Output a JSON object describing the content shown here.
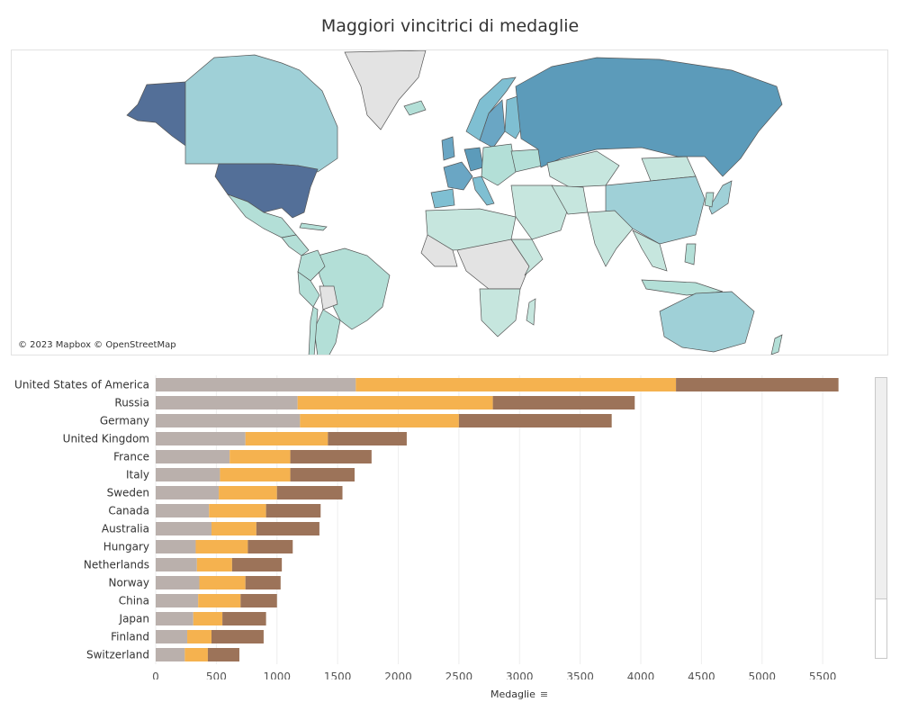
{
  "title": "Maggiori vincitrici di medaglie",
  "map": {
    "credit": "© 2023 Mapbox © OpenStreetMap",
    "colors": {
      "water": "#ffffff",
      "no_data": "#e3e3e3",
      "border": "#555555",
      "lowest": "#c6e6de",
      "low": "#b3dfd7",
      "mid_low": "#9fd0d7",
      "mid": "#7fbfd2",
      "mid_high": "#6aa6c4",
      "high": "#5c9bba",
      "highest": "#536f98"
    }
  },
  "chart_data": {
    "type": "bar",
    "orientation": "horizontal",
    "stacked": true,
    "categories": [
      "United States of America",
      "Russia",
      "Germany",
      "United Kingdom",
      "France",
      "Italy",
      "Sweden",
      "Canada",
      "Australia",
      "Hungary",
      "Netherlands",
      "Norway",
      "China",
      "Japan",
      "Finland",
      "Switzerland"
    ],
    "series": [
      {
        "color": "#bab0ac",
        "values": [
          1650,
          1170,
          1190,
          740,
          610,
          530,
          520,
          440,
          460,
          330,
          340,
          360,
          350,
          310,
          260,
          240
        ]
      },
      {
        "color": "#f5b24f",
        "values": [
          2640,
          1610,
          1310,
          680,
          500,
          580,
          480,
          470,
          370,
          430,
          290,
          380,
          350,
          240,
          200,
          190
        ]
      },
      {
        "color": "#9c7359",
        "values": [
          1340,
          1170,
          1260,
          650,
          670,
          530,
          540,
          450,
          520,
          370,
          410,
          290,
          300,
          360,
          430,
          260
        ]
      }
    ],
    "xlabel": "Medaglie",
    "xlim": [
      0,
      5700
    ],
    "xticks": [
      0,
      500,
      1000,
      1500,
      2000,
      2500,
      3000,
      3500,
      4000,
      4500,
      5000,
      5500
    ],
    "grid": true
  }
}
